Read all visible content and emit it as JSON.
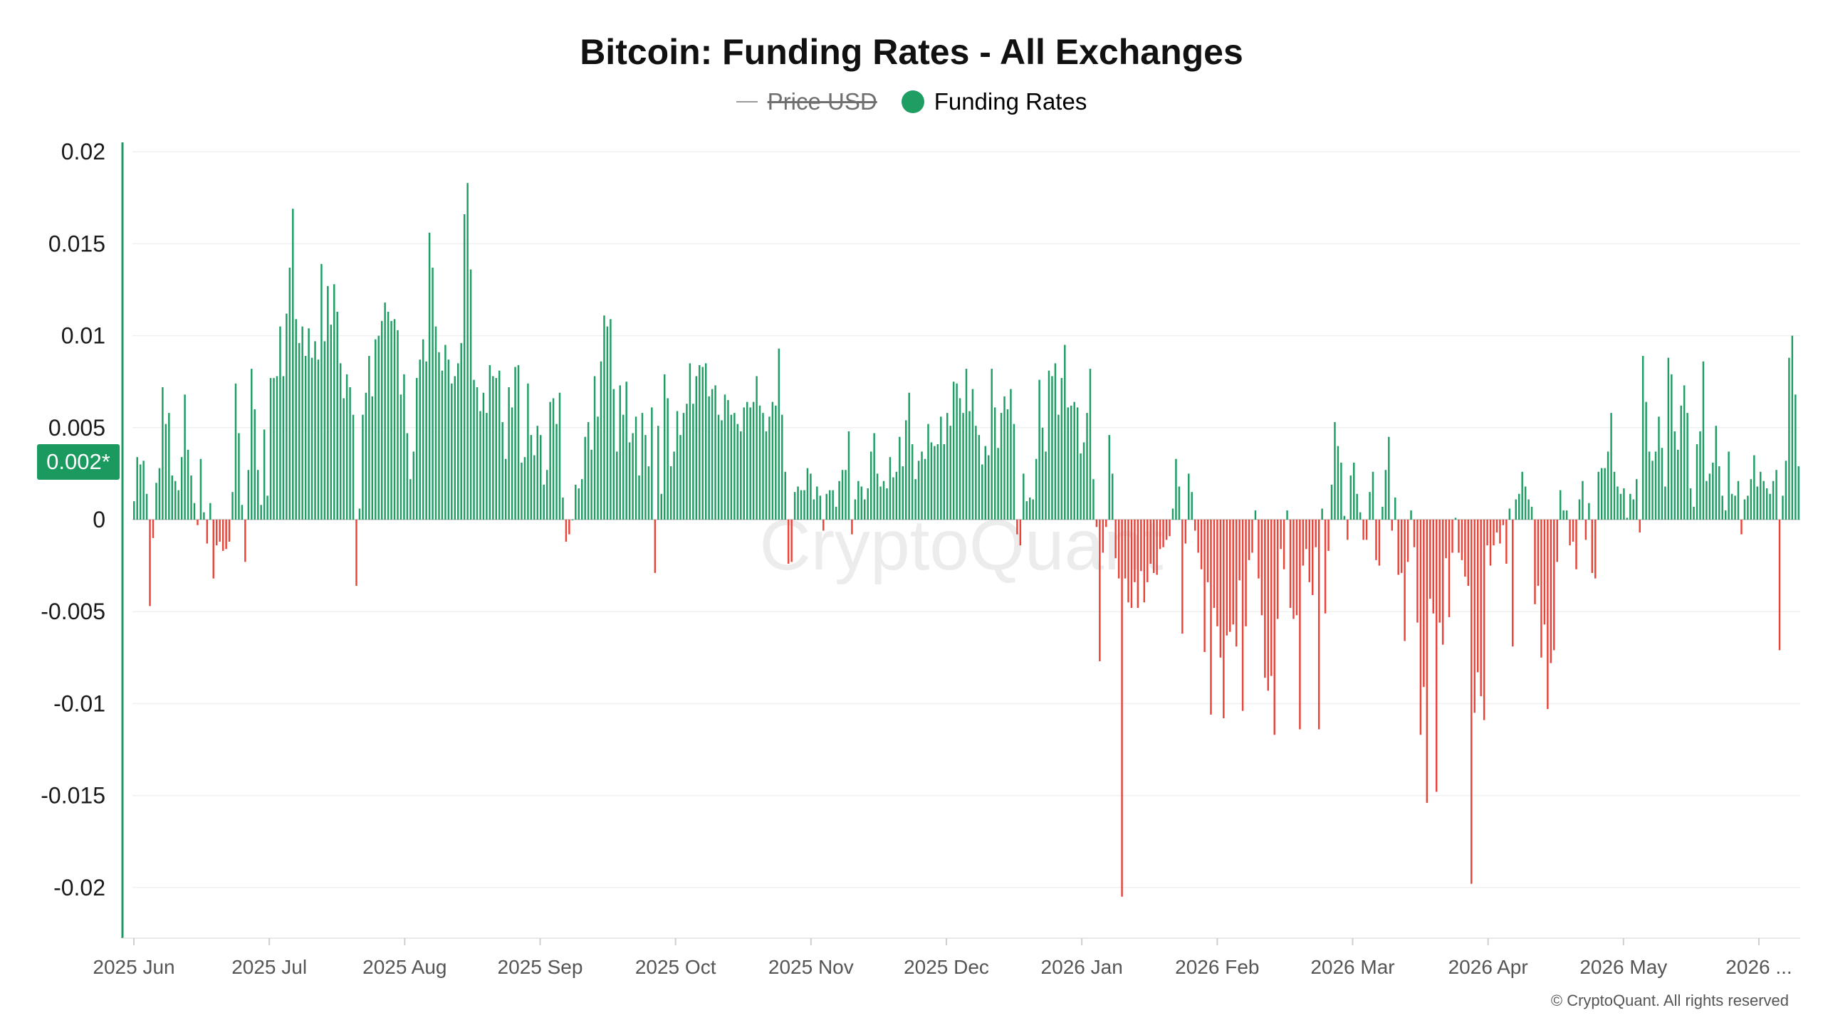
{
  "chart_data": {
    "type": "bar",
    "title": "Bitcoin: Funding Rates - All Exchanges",
    "legend": [
      {
        "name": "Price USD",
        "state": "hidden",
        "color": "#9a9a9a"
      },
      {
        "name": "Funding Rates",
        "state": "visible",
        "color": "#1e9e63"
      }
    ],
    "legend_position": "top-center",
    "current_value_label": "0.002*",
    "watermark": "CryptoQuant",
    "copyright": "© CryptoQuant. All rights reserved",
    "y_ticks": [
      "0.02",
      "0.015",
      "0.01",
      "0.005",
      "0",
      "-0.005",
      "-0.01",
      "-0.015",
      "-0.02"
    ],
    "x_ticks": [
      "2025 Jun",
      "2025 Jul",
      "2025 Aug",
      "2025 Sep",
      "2025 Oct",
      "2025 Nov",
      "2025 Dec",
      "2026 Jan",
      "2026 Feb",
      "2026 Mar",
      "2026 Apr",
      "2026 May",
      "2026 ..."
    ],
    "ylim": [
      -0.023,
      0.0205
    ],
    "grid": "horizontal",
    "positive_color": "#1e9e63",
    "negative_color": "#e8443a",
    "series": [
      {
        "name": "Funding Rates",
        "values": [
          0.001,
          0.0034,
          0.003,
          0.0032,
          0.0014,
          -0.0047,
          -0.001,
          0.002,
          0.0028,
          0.0072,
          0.0052,
          0.0058,
          0.0024,
          0.0021,
          0.0016,
          0.0034,
          0.0068,
          0.0038,
          0.0024,
          0.0009,
          -0.0003,
          0.0033,
          0.0004,
          -0.0013,
          0.0009,
          -0.0032,
          -0.0014,
          -0.0012,
          -0.0017,
          -0.0016,
          -0.0012,
          0.0015,
          0.0074,
          0.0047,
          0.0008,
          -0.0023,
          0.0027,
          0.0082,
          0.006,
          0.0027,
          0.0008,
          0.0049,
          0.0013,
          0.0077,
          0.0077,
          0.0078,
          0.0105,
          0.0078,
          0.0112,
          0.0137,
          0.0169,
          0.0109,
          0.0096,
          0.0105,
          0.0089,
          0.0104,
          0.0088,
          0.0097,
          0.0087,
          0.0139,
          0.0097,
          0.0127,
          0.0106,
          0.0128,
          0.0113,
          0.0085,
          0.0066,
          0.0079,
          0.0072,
          0.0057,
          -0.0036,
          0.0006,
          0.0057,
          0.0069,
          0.0089,
          0.0067,
          0.0098,
          0.01,
          0.0108,
          0.0118,
          0.0113,
          0.0108,
          0.0109,
          0.0103,
          0.0068,
          0.0079,
          0.0047,
          0.0022,
          0.0037,
          0.0077,
          0.0087,
          0.0098,
          0.0086,
          0.0156,
          0.0137,
          0.0105,
          0.0091,
          0.0081,
          0.0095,
          0.0087,
          0.0074,
          0.0078,
          0.0085,
          0.0096,
          0.0166,
          0.0183,
          0.0136,
          0.0076,
          0.0072,
          0.0059,
          0.0069,
          0.0058,
          0.0084,
          0.0078,
          0.0077,
          0.0081,
          0.0053,
          0.0033,
          0.0072,
          0.0061,
          0.0083,
          0.0084,
          0.0031,
          0.0034,
          0.0074,
          0.0046,
          0.0035,
          0.0051,
          0.0046,
          0.0019,
          0.0027,
          0.0064,
          0.0066,
          0.0052,
          0.0069,
          0.0012,
          -0.0012,
          -0.0008,
          0.0,
          0.0019,
          0.0017,
          0.0022,
          0.0045,
          0.0053,
          0.0038,
          0.0078,
          0.0056,
          0.0086,
          0.0111,
          0.0105,
          0.0109,
          0.0071,
          0.0037,
          0.0073,
          0.0057,
          0.0075,
          0.0042,
          0.0047,
          0.0056,
          0.0024,
          0.0058,
          0.0046,
          0.0029,
          0.0061,
          -0.0029,
          0.0051,
          0.0014,
          0.0079,
          0.0066,
          0.0029,
          0.0037,
          0.0059,
          0.0046,
          0.0058,
          0.0063,
          0.0085,
          0.0063,
          0.0078,
          0.0084,
          0.0083,
          0.0085,
          0.0067,
          0.0071,
          0.0073,
          0.0057,
          0.0054,
          0.0068,
          0.0065,
          0.0057,
          0.0058,
          0.0052,
          0.0048,
          0.0061,
          0.0064,
          0.0061,
          0.0064,
          0.0078,
          0.0062,
          0.0058,
          0.0048,
          0.0056,
          0.0064,
          0.0062,
          0.0093,
          0.0057,
          0.0026,
          -0.0024,
          -0.0023,
          0.0015,
          0.0018,
          0.0016,
          0.0016,
          0.0028,
          0.0025,
          0.0011,
          0.0018,
          0.0013,
          -0.0006,
          0.0014,
          0.0016,
          0.0016,
          0.0007,
          0.0021,
          0.0027,
          0.0027,
          0.0048,
          -0.0008,
          0.0011,
          0.0021,
          0.0018,
          0.0011,
          0.0017,
          0.0037,
          0.0047,
          0.0025,
          0.0018,
          0.0021,
          0.0017,
          0.0034,
          0.0023,
          0.0026,
          0.0045,
          0.0029,
          0.0054,
          0.0069,
          0.0041,
          0.0022,
          0.0032,
          0.0037,
          0.0033,
          0.0052,
          0.0042,
          0.004,
          0.0041,
          0.0056,
          0.0041,
          0.0058,
          0.0051,
          0.0075,
          0.0074,
          0.0066,
          0.0058,
          0.0082,
          0.0059,
          0.0071,
          0.0051,
          0.0046,
          0.003,
          0.004,
          0.0035,
          0.0082,
          0.0061,
          0.0039,
          0.0058,
          0.0067,
          0.006,
          0.0071,
          0.0052,
          -0.0008,
          -0.0014,
          0.0025,
          0.001,
          0.0012,
          0.0011,
          0.0033,
          0.0076,
          0.005,
          0.0037,
          0.0081,
          0.0078,
          0.0085,
          0.0057,
          0.0077,
          0.0095,
          0.0061,
          0.0062,
          0.0064,
          0.0061,
          0.0036,
          0.0042,
          0.0058,
          0.0082,
          0.0022,
          -0.0004,
          -0.0077,
          -0.0018,
          -0.0004,
          0.0046,
          0.0025,
          -0.0021,
          -0.0032,
          -0.0205,
          -0.0032,
          -0.0045,
          -0.0048,
          -0.0034,
          -0.0048,
          -0.0028,
          -0.0045,
          -0.0034,
          -0.0024,
          -0.0029,
          -0.003,
          -0.0016,
          -0.0015,
          -0.0011,
          -0.0009,
          0.0006,
          0.0033,
          0.0018,
          -0.0062,
          -0.0013,
          0.0025,
          0.0015,
          -0.0006,
          -0.0018,
          -0.0027,
          -0.0072,
          -0.0034,
          -0.0106,
          -0.0048,
          -0.0058,
          -0.0075,
          -0.0108,
          -0.0063,
          -0.0061,
          -0.0057,
          -0.0069,
          -0.0033,
          -0.0104,
          -0.0058,
          -0.0022,
          -0.0018,
          0.0005,
          -0.0032,
          -0.0052,
          -0.0086,
          -0.0093,
          -0.0085,
          -0.0117,
          -0.0054,
          -0.0016,
          -0.0027,
          0.0005,
          -0.0048,
          -0.0054,
          -0.0052,
          -0.0114,
          -0.0025,
          -0.0016,
          -0.0034,
          -0.0041,
          -0.0015,
          -0.0114,
          0.0006,
          -0.0051,
          -0.0017,
          0.0019,
          0.0053,
          0.004,
          0.0031,
          0.0002,
          -0.0011,
          0.0024,
          0.0031,
          0.0014,
          0.0004,
          -0.0011,
          -0.0011,
          0.0015,
          0.0026,
          -0.0022,
          -0.0025,
          0.0007,
          0.0027,
          0.0045,
          -0.0006,
          0.0012,
          -0.003,
          -0.0029,
          -0.0066,
          -0.0023,
          0.0005,
          -0.0015,
          -0.0056,
          -0.0117,
          -0.0091,
          -0.0154,
          -0.0043,
          -0.0051,
          -0.0148,
          -0.0056,
          -0.0068,
          -0.0021,
          -0.0053,
          -0.0018,
          0.0001,
          -0.0018,
          -0.0022,
          -0.0031,
          -0.0036,
          -0.0198,
          -0.0105,
          -0.0083,
          -0.0096,
          -0.0109,
          -0.0014,
          -0.0025,
          -0.0014,
          -0.0007,
          -0.0013,
          -0.0003,
          -0.0024,
          0.0006,
          -0.0069,
          0.0011,
          0.0014,
          0.0026,
          0.0018,
          0.0011,
          0.0007,
          -0.0046,
          -0.0036,
          -0.0075,
          -0.0057,
          -0.0103,
          -0.0078,
          -0.0071,
          -0.0023,
          0.0016,
          0.0005,
          0.0005,
          -0.0014,
          -0.0012,
          -0.0027,
          0.0011,
          0.0021,
          -0.0011,
          0.0009,
          -0.0029,
          -0.0032,
          0.0026,
          0.0028,
          0.0028,
          0.0037,
          0.0058,
          0.0026,
          0.0018,
          0.0014,
          0.0017,
          0.0001,
          0.0014,
          0.0011,
          0.0022,
          -0.0007,
          0.0089,
          0.0064,
          0.0037,
          0.0032,
          0.0037,
          0.0056,
          0.0039,
          0.0018,
          0.0088,
          0.0079,
          0.0048,
          0.0038,
          0.0062,
          0.0073,
          0.0058,
          0.0017,
          0.0007,
          0.0041,
          0.0048,
          0.0086,
          0.0021,
          0.0025,
          0.0031,
          0.0051,
          0.0029,
          0.0013,
          0.0005,
          0.0037,
          0.0014,
          0.0013,
          0.0021,
          -0.0008,
          0.0011,
          0.0013,
          0.0022,
          0.0035,
          0.0018,
          0.0026,
          0.0021,
          0.0017,
          0.0014,
          0.0021,
          0.0027,
          -0.0071,
          0.0013,
          0.0032,
          0.0088,
          0.01,
          0.0068,
          0.0029
        ]
      }
    ]
  }
}
